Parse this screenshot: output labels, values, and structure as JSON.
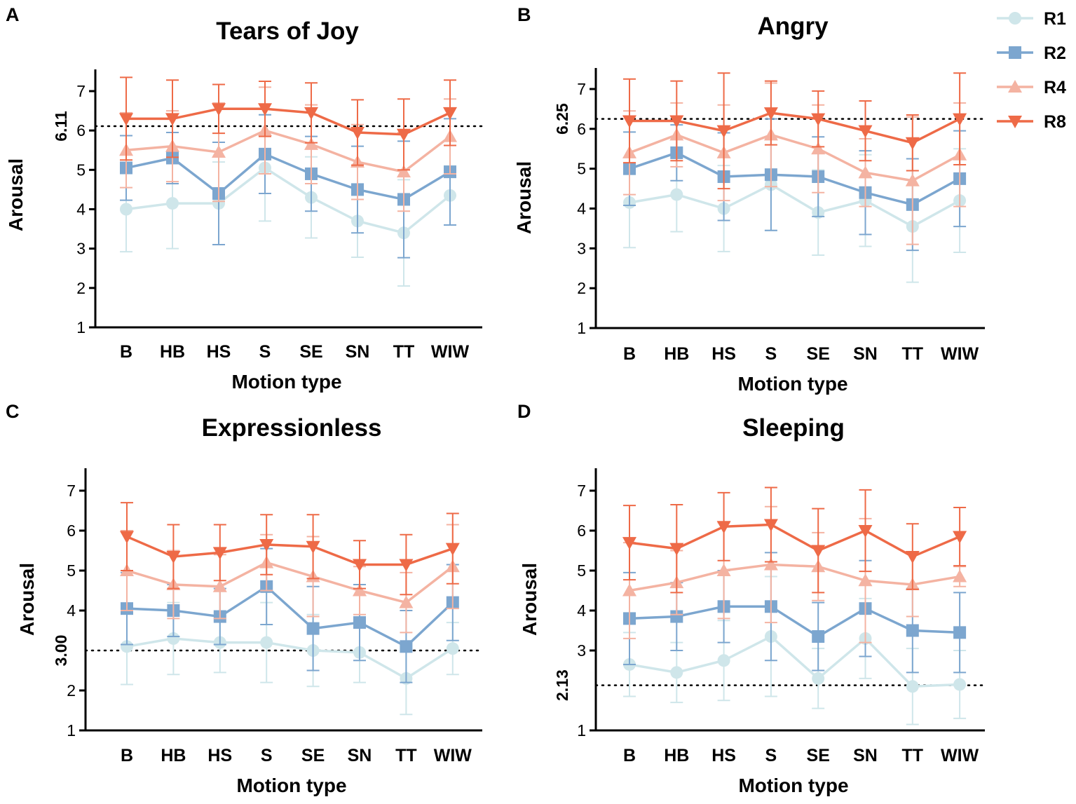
{
  "figure": {
    "legend": {
      "position": "top-right",
      "entries": [
        {
          "name": "R1",
          "color": "#cfe6ea",
          "marker": "circle"
        },
        {
          "name": "R2",
          "color": "#7ca6cf",
          "marker": "square"
        },
        {
          "name": "R4",
          "color": "#f4b3a2",
          "marker": "triangle-up"
        },
        {
          "name": "R8",
          "color": "#ee6a47",
          "marker": "triangle-down"
        }
      ]
    }
  },
  "chart_data": [
    {
      "panel": "A",
      "type": "line",
      "title": "Tears of Joy",
      "xlabel": "Motion type",
      "ylabel": "Arousal",
      "ylim": [
        1,
        7.6
      ],
      "yticks": [
        1,
        2,
        3,
        4,
        5,
        6,
        7
      ],
      "categories": [
        "B",
        "HB",
        "HS",
        "S",
        "SE",
        "SN",
        "TT",
        "WIW"
      ],
      "reference_line": {
        "value": 6.11,
        "label": "6.11"
      },
      "series": [
        {
          "name": "R1",
          "values": [
            4.0,
            4.15,
            4.15,
            5.05,
            4.3,
            3.7,
            3.4,
            4.35
          ],
          "errors": [
            1.08,
            1.15,
            1.05,
            1.35,
            1.03,
            0.92,
            1.35,
            0.75
          ]
        },
        {
          "name": "R2",
          "values": [
            5.05,
            5.3,
            4.4,
            5.4,
            4.9,
            4.5,
            4.25,
            4.95
          ],
          "errors": [
            0.82,
            0.65,
            1.3,
            1.0,
            0.95,
            1.1,
            1.48,
            1.35
          ]
        },
        {
          "name": "R4",
          "values": [
            5.5,
            5.6,
            5.45,
            6.0,
            5.65,
            5.2,
            4.95,
            5.85
          ],
          "errors": [
            0.95,
            0.9,
            1.25,
            1.1,
            1.0,
            0.95,
            1.0,
            0.95
          ]
        },
        {
          "name": "R8",
          "values": [
            6.3,
            6.3,
            6.55,
            6.55,
            6.45,
            5.95,
            5.9,
            6.45
          ],
          "errors": [
            1.05,
            0.98,
            0.62,
            0.7,
            0.76,
            0.83,
            0.9,
            0.83
          ]
        }
      ]
    },
    {
      "panel": "B",
      "type": "line",
      "title": "Angry",
      "xlabel": "Motion type",
      "ylabel": "Arousal",
      "ylim": [
        1,
        7.6
      ],
      "yticks": [
        1,
        2,
        3,
        4,
        5,
        6,
        7
      ],
      "categories": [
        "B",
        "HB",
        "HS",
        "S",
        "SE",
        "SN",
        "TT",
        "WIW"
      ],
      "reference_line": {
        "value": 6.25,
        "label": "6.25"
      },
      "series": [
        {
          "name": "R1",
          "values": [
            4.15,
            4.35,
            4.0,
            4.6,
            3.9,
            4.2,
            3.55,
            4.2
          ],
          "errors": [
            1.13,
            0.93,
            1.08,
            1.15,
            1.07,
            1.15,
            1.4,
            1.3
          ]
        },
        {
          "name": "R2",
          "values": [
            5.0,
            5.4,
            4.8,
            4.85,
            4.8,
            4.4,
            4.1,
            4.75
          ],
          "errors": [
            0.92,
            0.7,
            1.1,
            1.4,
            1.0,
            1.05,
            1.15,
            1.2
          ]
        },
        {
          "name": "R4",
          "values": [
            5.4,
            5.85,
            5.4,
            5.85,
            5.5,
            4.9,
            4.7,
            5.35
          ],
          "errors": [
            1.05,
            0.8,
            1.2,
            1.3,
            1.1,
            0.85,
            1.6,
            1.3
          ]
        },
        {
          "name": "R8",
          "values": [
            6.2,
            6.2,
            5.95,
            6.4,
            6.25,
            5.95,
            5.65,
            6.25
          ],
          "errors": [
            1.05,
            1.0,
            1.45,
            0.8,
            0.7,
            0.75,
            0.7,
            1.15
          ]
        }
      ]
    },
    {
      "panel": "C",
      "type": "line",
      "title": "Expressionless",
      "xlabel": "Motion type",
      "ylabel": "Arousal",
      "ylim": [
        1,
        7.6
      ],
      "yticks": [
        1,
        2,
        4,
        5,
        6,
        7
      ],
      "categories": [
        "B",
        "HB",
        "HS",
        "S",
        "SE",
        "SN",
        "TT",
        "WIW"
      ],
      "reference_line": {
        "value": 3.0,
        "label": "3.00"
      },
      "series": [
        {
          "name": "R1",
          "values": [
            3.1,
            3.3,
            3.2,
            3.2,
            3.0,
            2.95,
            2.3,
            3.05
          ],
          "errors": [
            0.95,
            0.9,
            0.75,
            1.0,
            0.9,
            0.75,
            0.9,
            0.65
          ]
        },
        {
          "name": "R2",
          "values": [
            4.05,
            4.0,
            3.85,
            4.6,
            3.55,
            3.7,
            3.1,
            4.2
          ],
          "errors": [
            0.9,
            0.65,
            0.7,
            0.95,
            1.05,
            0.95,
            0.9,
            0.95
          ]
        },
        {
          "name": "R4",
          "values": [
            5.0,
            4.65,
            4.6,
            5.2,
            4.85,
            4.5,
            4.2,
            5.1
          ],
          "errors": [
            1.0,
            0.85,
            0.8,
            0.7,
            1.0,
            0.6,
            0.75,
            1.05
          ]
        },
        {
          "name": "R8",
          "values": [
            5.85,
            5.35,
            5.45,
            5.65,
            5.6,
            5.15,
            5.15,
            5.55
          ],
          "errors": [
            0.85,
            0.8,
            0.7,
            0.75,
            0.8,
            0.6,
            0.75,
            0.88
          ]
        }
      ]
    },
    {
      "panel": "D",
      "type": "line",
      "title": "Sleeping",
      "xlabel": "Motion type",
      "ylabel": "Arousal",
      "ylim": [
        1,
        7.6
      ],
      "yticks": [
        1,
        3,
        4,
        5,
        6,
        7
      ],
      "categories": [
        "B",
        "HB",
        "HS",
        "S",
        "SE",
        "SN",
        "TT",
        "WIW"
      ],
      "reference_line": {
        "value": 2.13,
        "label": "2.13"
      },
      "series": [
        {
          "name": "R1",
          "values": [
            2.65,
            2.45,
            2.75,
            3.35,
            2.3,
            3.3,
            2.1,
            2.15
          ],
          "errors": [
            0.8,
            0.75,
            1.0,
            1.5,
            0.75,
            1.0,
            0.95,
            0.85
          ]
        },
        {
          "name": "R2",
          "values": [
            3.8,
            3.85,
            4.1,
            4.1,
            3.35,
            4.05,
            3.5,
            3.45
          ],
          "errors": [
            1.15,
            0.85,
            0.9,
            1.35,
            0.85,
            1.2,
            1.05,
            1.0
          ]
        },
        {
          "name": "R4",
          "values": [
            4.5,
            4.7,
            5.0,
            5.15,
            5.1,
            4.75,
            4.65,
            4.85
          ],
          "errors": [
            1.2,
            0.8,
            1.2,
            1.45,
            0.85,
            1.55,
            0.8,
            0.25
          ]
        },
        {
          "name": "R8",
          "values": [
            5.7,
            5.55,
            6.1,
            6.15,
            5.5,
            6.0,
            5.35,
            5.85
          ],
          "errors": [
            0.93,
            1.1,
            0.85,
            0.93,
            1.05,
            1.02,
            0.82,
            0.73
          ]
        }
      ]
    }
  ]
}
